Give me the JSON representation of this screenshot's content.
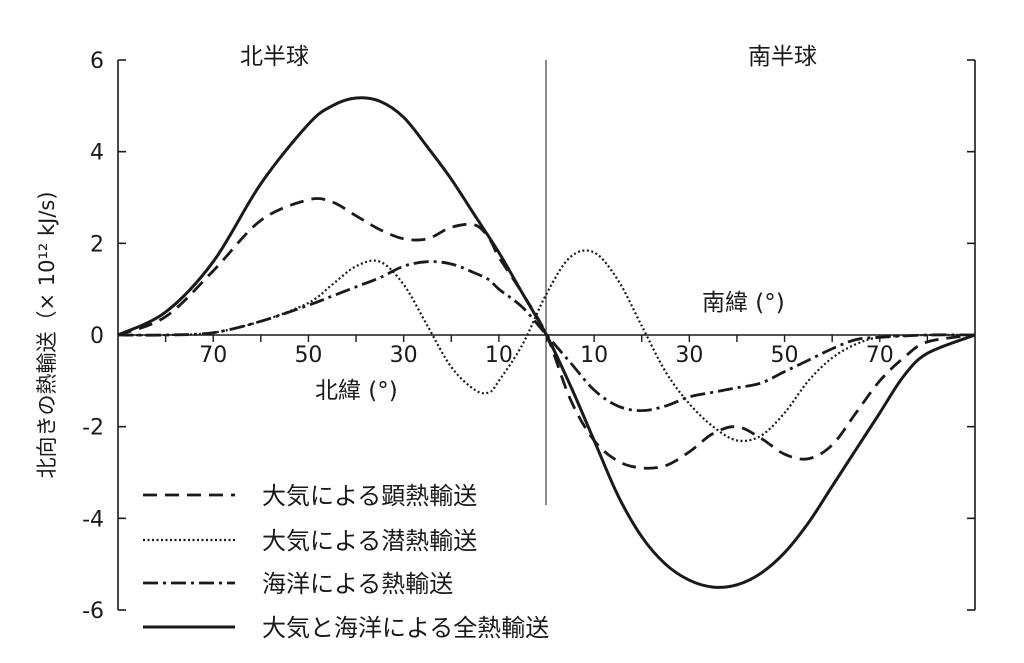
{
  "chart_data": {
    "type": "line",
    "ylabel": "北向きの熱輸送（× 10¹² kJ/s)",
    "ylim": [
      -6,
      6
    ],
    "yticks": [
      6,
      4,
      2,
      0,
      -2,
      -4,
      -6
    ],
    "xlim": [
      90,
      -90
    ],
    "xtick_values": [
      70,
      50,
      30,
      10,
      -10,
      -30,
      -50,
      -70
    ],
    "xtick_labels": [
      "70",
      "50",
      "30",
      "10",
      "10",
      "30",
      "50",
      "70"
    ],
    "north_label": "北緯 (°)",
    "south_label": "南緯 (°)",
    "hemisphere_north": "北半球",
    "hemisphere_south": "南半球",
    "legend": "bottom-left",
    "series": [
      {
        "name": "大気による顕熱輸送",
        "style": "dashed",
        "x": [
          90,
          80,
          70,
          60,
          50,
          45,
          40,
          35,
          30,
          25,
          20,
          15,
          12,
          10,
          5,
          0,
          -5,
          -10,
          -15,
          -20,
          -25,
          -30,
          -35,
          -40,
          -45,
          -50,
          -55,
          -60,
          -65,
          -70,
          -75,
          -80,
          -90
        ],
        "y": [
          0,
          0.4,
          1.4,
          2.5,
          2.95,
          2.9,
          2.6,
          2.3,
          2.1,
          2.1,
          2.35,
          2.4,
          2.1,
          1.7,
          0.9,
          0,
          -1.4,
          -2.3,
          -2.75,
          -2.9,
          -2.85,
          -2.55,
          -2.15,
          -2.0,
          -2.25,
          -2.6,
          -2.7,
          -2.4,
          -1.7,
          -1.0,
          -0.5,
          -0.15,
          0
        ]
      },
      {
        "name": "大気による潜熱輸送",
        "style": "dotted",
        "x": [
          90,
          80,
          70,
          60,
          50,
          45,
          40,
          35,
          30,
          25,
          20,
          15,
          12,
          10,
          5,
          0,
          -5,
          -10,
          -15,
          -20,
          -25,
          -30,
          -35,
          -40,
          -45,
          -50,
          -55,
          -60,
          -65,
          -70,
          -80,
          -90
        ],
        "y": [
          0,
          0,
          0.05,
          0.3,
          0.7,
          1.1,
          1.5,
          1.6,
          1.1,
          0.2,
          -0.7,
          -1.2,
          -1.25,
          -1.0,
          -0.2,
          0.9,
          1.7,
          1.8,
          1.2,
          0.2,
          -0.8,
          -1.5,
          -2.0,
          -2.3,
          -2.2,
          -1.7,
          -1.0,
          -0.5,
          -0.2,
          -0.05,
          0,
          0
        ]
      },
      {
        "name": "海洋による熱輸送",
        "style": "dashdot",
        "x": [
          90,
          80,
          70,
          60,
          50,
          45,
          40,
          35,
          30,
          25,
          20,
          15,
          12,
          10,
          5,
          0,
          -5,
          -10,
          -15,
          -20,
          -25,
          -30,
          -35,
          -40,
          -45,
          -50,
          -55,
          -60,
          -65,
          -70,
          -80,
          -90
        ],
        "y": [
          0,
          0,
          0.05,
          0.3,
          0.65,
          0.85,
          1.05,
          1.25,
          1.5,
          1.6,
          1.55,
          1.35,
          1.2,
          1.0,
          0.6,
          0,
          -0.6,
          -1.2,
          -1.55,
          -1.65,
          -1.55,
          -1.35,
          -1.25,
          -1.15,
          -1.05,
          -0.8,
          -0.55,
          -0.3,
          -0.1,
          -0.05,
          0,
          0
        ]
      },
      {
        "name": "大気と海洋による全熱輸送",
        "style": "solid",
        "x": [
          90,
          80,
          70,
          60,
          50,
          45,
          40,
          35,
          30,
          25,
          20,
          15,
          10,
          5,
          0,
          -5,
          -10,
          -15,
          -20,
          -25,
          -30,
          -35,
          -40,
          -45,
          -50,
          -55,
          -60,
          -65,
          -70,
          -75,
          -80,
          -90
        ],
        "y": [
          0,
          0.5,
          1.6,
          3.3,
          4.6,
          5.0,
          5.17,
          5.1,
          4.75,
          4.1,
          3.4,
          2.6,
          1.8,
          0.9,
          0,
          -1.1,
          -2.3,
          -3.5,
          -4.4,
          -5.0,
          -5.35,
          -5.5,
          -5.45,
          -5.2,
          -4.75,
          -4.1,
          -3.3,
          -2.5,
          -1.7,
          -0.9,
          -0.4,
          0
        ]
      }
    ]
  }
}
